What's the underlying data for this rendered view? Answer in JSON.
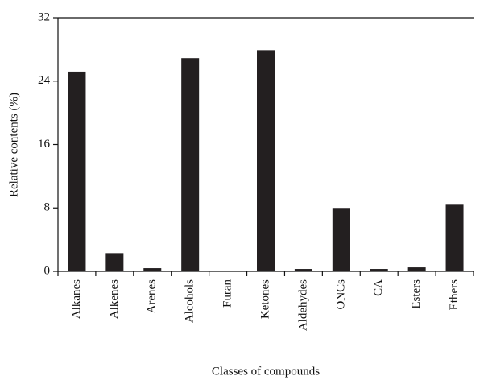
{
  "chart_data": {
    "type": "bar",
    "x_label": "Classes of compounds",
    "y_label": "Relative contents (%)",
    "categories": [
      "Alkanes",
      "Alkenes",
      "Arenes",
      "Alcohols",
      "Furan",
      "Ketones",
      "Aldehydes",
      "ONCs",
      "CA",
      "Esters",
      "Ethers"
    ],
    "values": [
      25.2,
      2.3,
      0.4,
      26.9,
      0.1,
      27.9,
      0.3,
      8.0,
      0.3,
      0.5,
      8.4
    ],
    "color": "#231f20",
    "ylim": [
      0,
      32
    ],
    "yticks": [
      0,
      8,
      16,
      24,
      32
    ]
  }
}
